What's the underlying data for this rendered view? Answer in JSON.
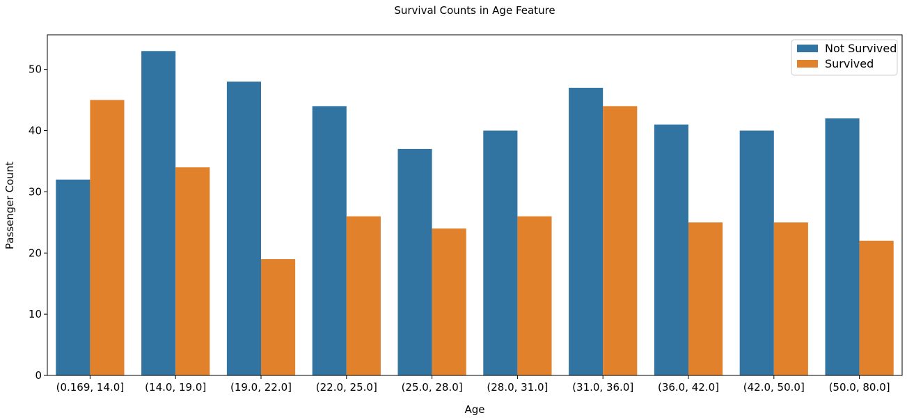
{
  "chart_data": {
    "type": "bar",
    "title": "Survival Counts in Age Feature",
    "xlabel": "Age",
    "ylabel": "Passenger Count",
    "categories": [
      "(0.169, 14.0]",
      "(14.0, 19.0]",
      "(19.0, 22.0]",
      "(22.0, 25.0]",
      "(25.0, 28.0]",
      "(28.0, 31.0]",
      "(31.0, 36.0]",
      "(36.0, 42.0]",
      "(42.0, 50.0]",
      "(50.0, 80.0]"
    ],
    "series": [
      {
        "name": "Not Survived",
        "color": "#3274a1",
        "values": [
          32,
          53,
          48,
          44,
          37,
          40,
          47,
          41,
          40,
          42
        ]
      },
      {
        "name": "Survived",
        "color": "#e1812c",
        "values": [
          45,
          34,
          19,
          26,
          24,
          26,
          44,
          25,
          25,
          22
        ]
      }
    ],
    "ylim": [
      0,
      55.65
    ],
    "yticks": [
      0,
      10,
      20,
      30,
      40,
      50
    ],
    "grid": false,
    "legend_position": "top-right"
  }
}
